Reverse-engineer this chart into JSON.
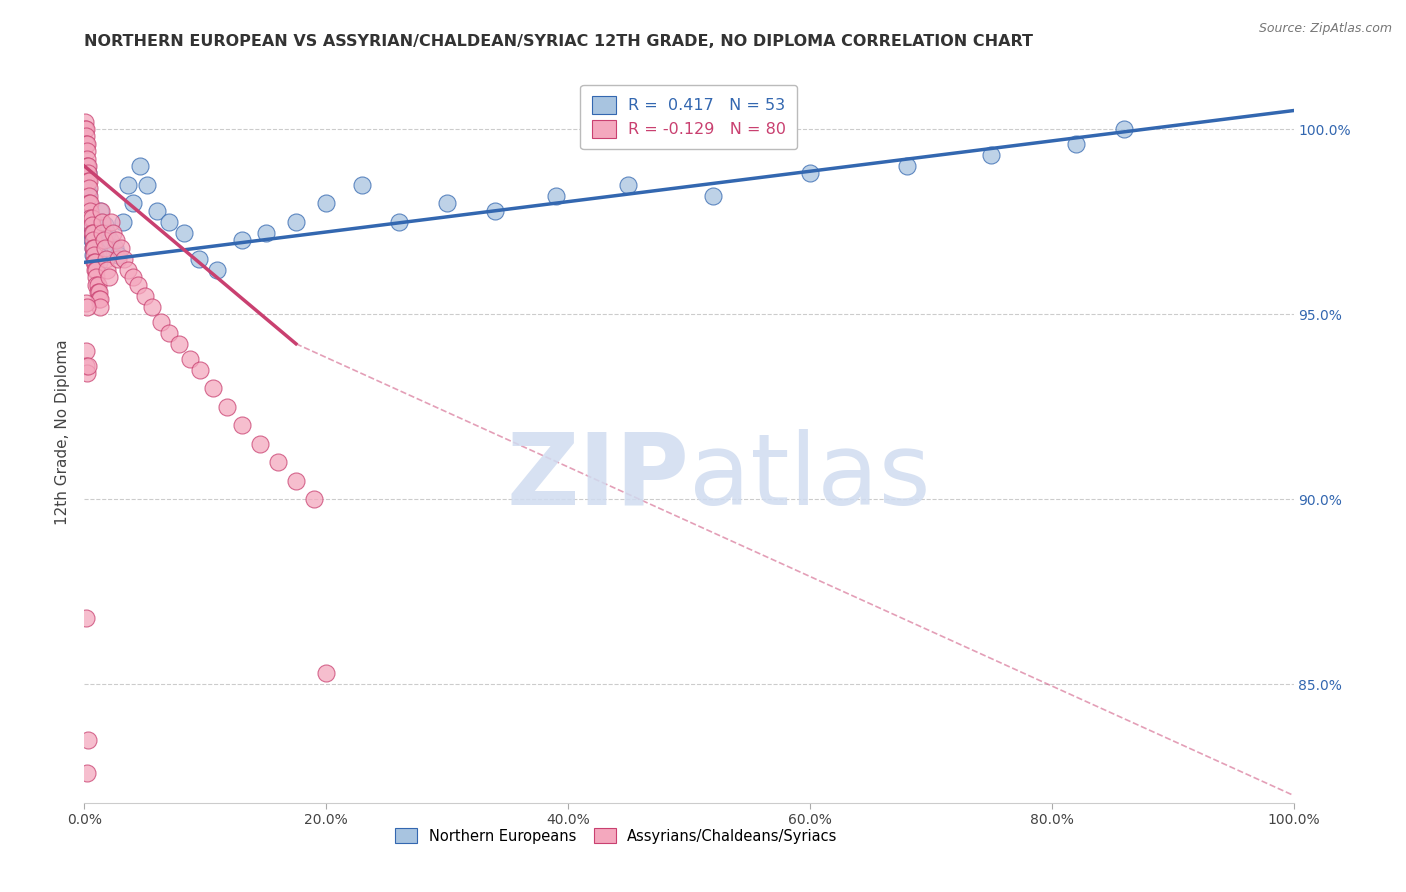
{
  "title": "NORTHERN EUROPEAN VS ASSYRIAN/CHALDEAN/SYRIAC 12TH GRADE, NO DIPLOMA CORRELATION CHART",
  "source": "Source: ZipAtlas.com",
  "ylabel": "12th Grade, No Diploma",
  "blue_label": "Northern Europeans",
  "pink_label": "Assyrians/Chaldeans/Syriacs",
  "blue_R": 0.417,
  "blue_N": 53,
  "pink_R": -0.129,
  "pink_N": 80,
  "blue_color": "#A8C4E0",
  "pink_color": "#F4A8BE",
  "blue_line_color": "#3367B0",
  "pink_line_color": "#C94070",
  "diag_color": "#D0D0D0",
  "watermark_color": "#D0DCF0",
  "xmin": 0.0,
  "xmax": 1.0,
  "ymin": 0.818,
  "ymax": 1.018,
  "right_yticks": [
    1.0,
    0.95,
    0.9,
    0.85
  ],
  "right_yticklabels": [
    "100.0%",
    "95.0%",
    "90.0%",
    "85.0%"
  ],
  "xtick_vals": [
    0.0,
    0.2,
    0.4,
    0.6,
    0.8,
    1.0
  ],
  "xtick_labels": [
    "0.0%",
    "20.0%",
    "40.0%",
    "60.0%",
    "80.0%",
    "100.0%"
  ],
  "blue_scatter_x": [
    0.001,
    0.002,
    0.002,
    0.003,
    0.003,
    0.004,
    0.005,
    0.005,
    0.006,
    0.006,
    0.007,
    0.007,
    0.008,
    0.008,
    0.009,
    0.01,
    0.011,
    0.012,
    0.013,
    0.014,
    0.015,
    0.016,
    0.017,
    0.019,
    0.021,
    0.025,
    0.028,
    0.032,
    0.036,
    0.04,
    0.046,
    0.052,
    0.06,
    0.07,
    0.082,
    0.095,
    0.11,
    0.13,
    0.15,
    0.175,
    0.2,
    0.23,
    0.26,
    0.3,
    0.34,
    0.39,
    0.45,
    0.52,
    0.6,
    0.68,
    0.75,
    0.82,
    0.86
  ],
  "blue_scatter_y": [
    0.98,
    0.99,
    0.985,
    0.988,
    0.983,
    0.978,
    0.976,
    0.974,
    0.972,
    0.97,
    0.968,
    0.966,
    0.975,
    0.972,
    0.97,
    0.968,
    0.966,
    0.964,
    0.978,
    0.975,
    0.972,
    0.97,
    0.974,
    0.972,
    0.97,
    0.968,
    0.966,
    0.975,
    0.985,
    0.98,
    0.99,
    0.985,
    0.978,
    0.975,
    0.972,
    0.965,
    0.962,
    0.97,
    0.972,
    0.975,
    0.98,
    0.985,
    0.975,
    0.98,
    0.978,
    0.982,
    0.985,
    0.982,
    0.988,
    0.99,
    0.993,
    0.996,
    1.0
  ],
  "pink_scatter_x": [
    0.0005,
    0.0008,
    0.001,
    0.001,
    0.001,
    0.002,
    0.002,
    0.002,
    0.002,
    0.003,
    0.003,
    0.003,
    0.004,
    0.004,
    0.004,
    0.004,
    0.005,
    0.005,
    0.005,
    0.006,
    0.006,
    0.006,
    0.007,
    0.007,
    0.007,
    0.008,
    0.008,
    0.008,
    0.009,
    0.009,
    0.01,
    0.01,
    0.01,
    0.011,
    0.011,
    0.012,
    0.012,
    0.013,
    0.013,
    0.014,
    0.015,
    0.015,
    0.016,
    0.017,
    0.018,
    0.019,
    0.02,
    0.022,
    0.024,
    0.026,
    0.028,
    0.03,
    0.033,
    0.036,
    0.04,
    0.044,
    0.05,
    0.056,
    0.063,
    0.07,
    0.078,
    0.087,
    0.096,
    0.106,
    0.118,
    0.13,
    0.145,
    0.16,
    0.175,
    0.19,
    0.001,
    0.002,
    0.001,
    0.001,
    0.002,
    0.003,
    0.001,
    0.2,
    0.003,
    0.002
  ],
  "pink_scatter_y": [
    1.002,
    1.0,
    1.0,
    0.998,
    0.996,
    0.996,
    0.994,
    0.992,
    0.99,
    0.99,
    0.988,
    0.986,
    0.986,
    0.984,
    0.982,
    0.98,
    0.98,
    0.978,
    0.976,
    0.976,
    0.974,
    0.972,
    0.972,
    0.97,
    0.968,
    0.968,
    0.966,
    0.964,
    0.964,
    0.962,
    0.962,
    0.96,
    0.958,
    0.958,
    0.956,
    0.956,
    0.954,
    0.954,
    0.952,
    0.978,
    0.975,
    0.972,
    0.97,
    0.968,
    0.965,
    0.962,
    0.96,
    0.975,
    0.972,
    0.97,
    0.965,
    0.968,
    0.965,
    0.962,
    0.96,
    0.958,
    0.955,
    0.952,
    0.948,
    0.945,
    0.942,
    0.938,
    0.935,
    0.93,
    0.925,
    0.92,
    0.915,
    0.91,
    0.905,
    0.9,
    0.953,
    0.952,
    0.94,
    0.936,
    0.934,
    0.936,
    0.868,
    0.853,
    0.835,
    0.826
  ],
  "blue_trendline_x": [
    0.0,
    1.0
  ],
  "blue_trendline_y": [
    0.964,
    1.005
  ],
  "pink_trendline_x": [
    0.0,
    0.175
  ],
  "pink_trendline_y": [
    0.99,
    0.942
  ]
}
